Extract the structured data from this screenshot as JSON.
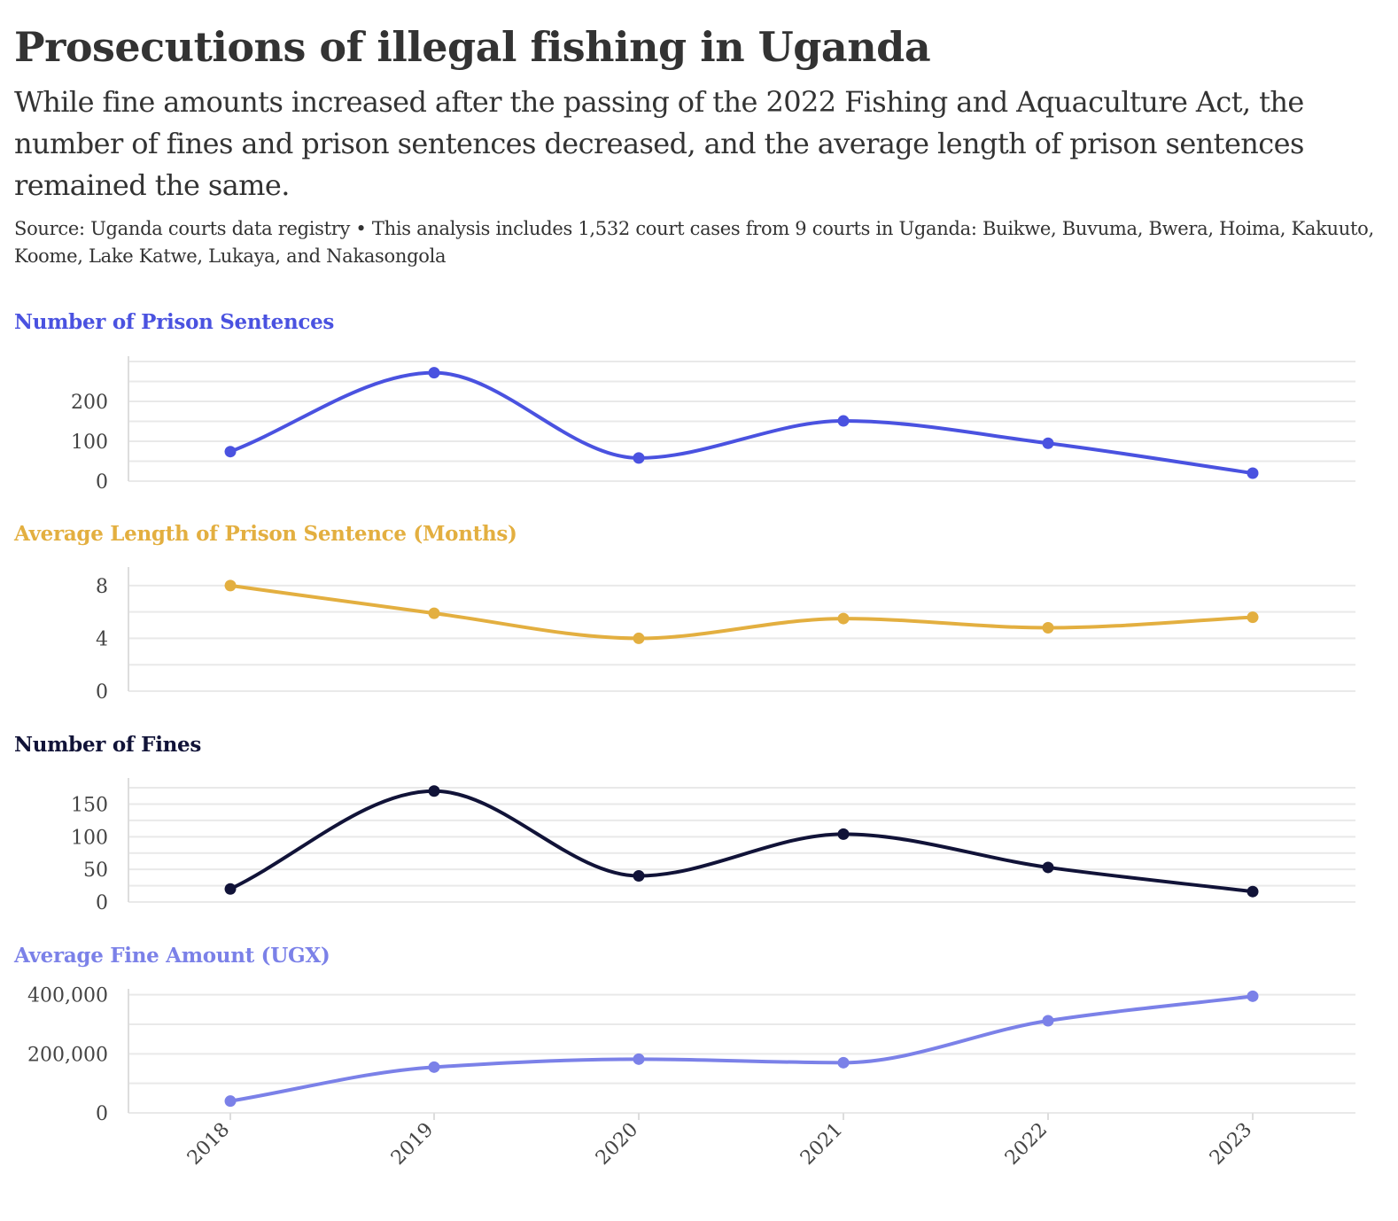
{
  "title": "Prosecutions of illegal fishing in Uganda",
  "subtitle": "While fine amounts increased after the passing of the 2022 Fishing and Aquaculture Act, the number of fines and prison sentences decreased, and the average length of prison sentences remained the same.",
  "source": "Source: Uganda courts data registry • This analysis includes 1,532 court cases from 9 courts in Uganda: Buikwe, Buvuma, Bwera, Hoima, Kakuuto, Koome, Lake Katwe, Lukaya, and Nakasongola",
  "chart_data": [
    {
      "type": "line",
      "title": "Number of Prison Sentences",
      "color": "#4a52e0",
      "x": [
        "2018",
        "2019",
        "2020",
        "2021",
        "2022",
        "2023"
      ],
      "values": [
        74,
        272,
        58,
        151,
        95,
        20
      ],
      "ylim": [
        0,
        300
      ],
      "yticks": [
        0,
        100,
        200
      ],
      "ytick_labels": [
        "0",
        "100",
        "200"
      ],
      "grid": true
    },
    {
      "type": "line",
      "title": "Average Length of Prison Sentence (Months)",
      "color": "#e3af40",
      "x": [
        "2018",
        "2019",
        "2020",
        "2021",
        "2022",
        "2023"
      ],
      "values": [
        8.0,
        5.9,
        4.0,
        5.5,
        4.8,
        5.6
      ],
      "ylim": [
        0,
        9.4
      ],
      "yticks": [
        0,
        4,
        8
      ],
      "ytick_labels": [
        "0",
        "4",
        "8"
      ],
      "grid": true
    },
    {
      "type": "line",
      "title": "Number of Fines",
      "color": "#111338",
      "x": [
        "2018",
        "2019",
        "2020",
        "2021",
        "2022",
        "2023"
      ],
      "values": [
        20,
        170,
        40,
        104,
        53,
        16
      ],
      "ylim": [
        0,
        190
      ],
      "yticks": [
        0,
        50,
        100,
        150
      ],
      "ytick_labels": [
        "0",
        "50",
        "100",
        "150"
      ],
      "grid": true
    },
    {
      "type": "line",
      "title": "Average Fine Amount (UGX)",
      "color": "#7b81e8",
      "x": [
        "2018",
        "2019",
        "2020",
        "2021",
        "2022",
        "2023"
      ],
      "values": [
        40000,
        155000,
        182000,
        170000,
        312000,
        395000
      ],
      "ylim": [
        0,
        420000
      ],
      "yticks": [
        0,
        200000,
        400000
      ],
      "ytick_labels": [
        "0",
        "200,000",
        "400,000"
      ],
      "grid": true
    }
  ]
}
